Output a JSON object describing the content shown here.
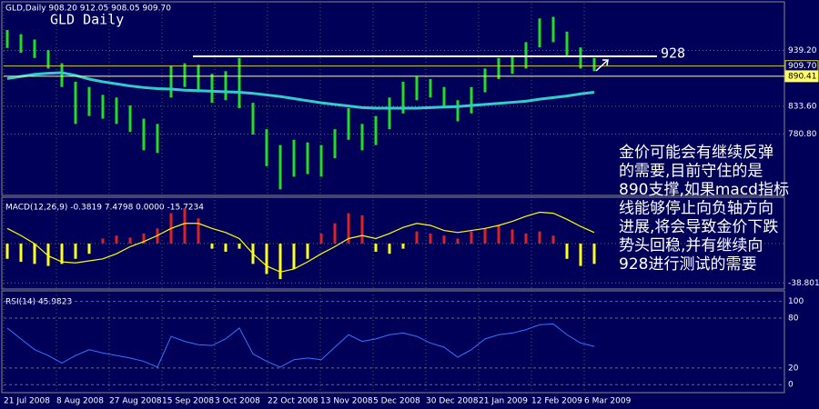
{
  "header": {
    "symbol_line": "GLD,Daily 908.20 912.05 908.05 909.70",
    "title": "GLD Daily"
  },
  "chart_data": [
    {
      "type": "ohlc",
      "color": "#22dd22",
      "high": [
        978,
        970,
        960,
        940,
        915,
        880,
        870,
        855,
        850,
        835,
        810,
        800,
        910,
        915,
        912,
        895,
        900,
        925,
        840,
        790,
        760,
        770,
        765,
        760,
        790,
        830,
        800,
        815,
        850,
        880,
        890,
        885,
        870,
        845,
        870,
        905,
        925,
        930,
        955,
        1000,
        1003,
        975,
        945,
        925
      ],
      "low": [
        944,
        935,
        925,
        905,
        870,
        800,
        815,
        810,
        800,
        785,
        750,
        745,
        850,
        870,
        860,
        840,
        845,
        830,
        780,
        720,
        676,
        700,
        705,
        700,
        735,
        770,
        750,
        760,
        790,
        820,
        845,
        850,
        830,
        805,
        820,
        860,
        885,
        895,
        905,
        945,
        955,
        930,
        905,
        900
      ],
      "ma": {
        "color": "#33cccc",
        "values": [
          886,
          890,
          894,
          896,
          897,
          892,
          885,
          880,
          876,
          872,
          869,
          867,
          866,
          864,
          863,
          862,
          861,
          860,
          858,
          855,
          852,
          848,
          844,
          840,
          837,
          834,
          831,
          830,
          830,
          830,
          830,
          831,
          832,
          833,
          835,
          837,
          839,
          841,
          843,
          847,
          850,
          853,
          857,
          860
        ]
      },
      "ylim": [
        668,
        1028
      ],
      "yticks": [
        {
          "value": 939.2,
          "label": "939.20"
        },
        {
          "value": 833.6,
          "label": "833.60"
        },
        {
          "value": 780.8,
          "label": "780.80"
        }
      ],
      "levels": [
        {
          "value": 909.7,
          "label": "909.70",
          "color": "#cccc44"
        },
        {
          "value": 890.41,
          "label": "890.41",
          "color": "#ffff66"
        }
      ],
      "resistance": 928
    },
    {
      "type": "macd",
      "label": "MACD(12,26,9) -0.3819 7.4798 0.0000 -15.7234",
      "histogram": [
        -15,
        -18,
        -20,
        -22,
        -20,
        -15,
        -10,
        5,
        8,
        6,
        10,
        15,
        30,
        35,
        25,
        -5,
        -8,
        -5,
        -20,
        -30,
        -35,
        -25,
        -15,
        10,
        20,
        30,
        28,
        -8,
        -10,
        -5,
        12,
        10,
        8,
        5,
        12,
        15,
        18,
        14,
        10,
        12,
        8,
        -15,
        -22,
        -20
      ],
      "line": [
        15,
        8,
        0,
        -12,
        -18,
        -19,
        -17,
        -15,
        -10,
        -3,
        2,
        8,
        15,
        20,
        20,
        15,
        11,
        5,
        -10,
        -22,
        -28,
        -25,
        -18,
        -10,
        -3,
        5,
        8,
        5,
        10,
        16,
        20,
        18,
        13,
        11,
        13,
        15,
        18,
        22,
        27,
        31,
        30,
        24,
        17,
        11
      ],
      "line_color": "#ffff00",
      "positive_color": "#dd2222",
      "negative_color": "#ffff22",
      "ylim": [
        -43,
        44
      ],
      "yticks": [
        -38.8013
      ]
    },
    {
      "type": "line",
      "label": "RSI(14) 45.9823",
      "color": "#3377ff",
      "values": [
        68,
        55,
        42,
        35,
        26,
        35,
        42,
        38,
        35,
        32,
        28,
        21,
        58,
        52,
        48,
        47,
        55,
        68,
        37,
        28,
        21,
        30,
        32,
        30,
        45,
        60,
        52,
        55,
        60,
        62,
        58,
        50,
        45,
        33,
        42,
        55,
        60,
        62,
        66,
        72,
        73,
        60,
        50,
        46
      ],
      "ylim": [
        -7.4,
        110.5
      ],
      "yticks": [
        0,
        20,
        80,
        100
      ]
    }
  ],
  "date_labels": [
    "21 Jul 2008",
    "8 Aug 2008",
    "27 Aug 2008",
    "15 Sep 2008",
    "3 Oct 2008",
    "22 Oct 2008",
    "13 Nov 2008",
    "5 Dec 2008",
    "30 Dec 2008",
    "21 Jan 2009",
    "12 Feb 2009",
    "6 Mar 2009"
  ],
  "annotation": {
    "lines": [
      "金价可能会有继续反弹",
      "的需要,目前守住的是",
      "890支撑,如果macd指标",
      "线能够停止向负轴方向",
      "进展,将会导致金价下跌",
      "势头回稳,并有继续向",
      "928进行测试的需要"
    ]
  }
}
